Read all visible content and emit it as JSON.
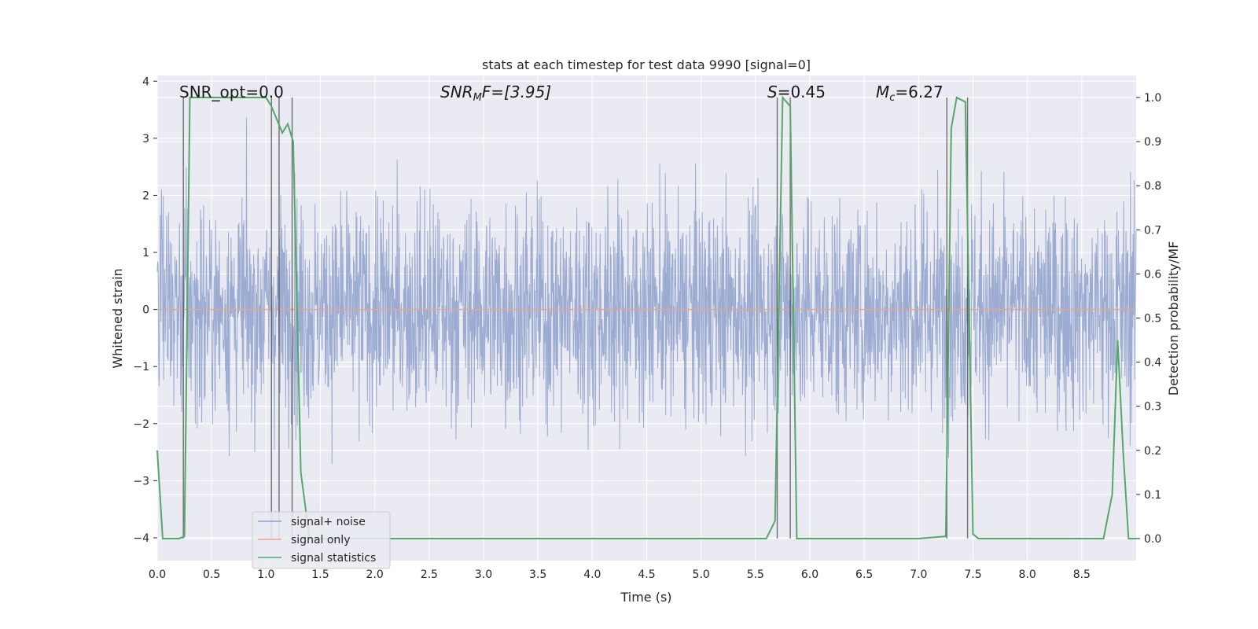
{
  "chart_data": {
    "type": "line",
    "title": "stats at each timestep for test data 9990 [signal=0]",
    "xlabel": "Time (s)",
    "ylabel_left": "Whitened strain",
    "ylabel_right": "Detection probability/MF",
    "xlim": [
      0.0,
      9.0
    ],
    "ylim_left": [
      -4.4,
      4.1
    ],
    "ylim_right": [
      -0.05,
      1.05
    ],
    "x_ticks": [
      "0.0",
      "0.5",
      "1.0",
      "1.5",
      "2.0",
      "2.5",
      "3.0",
      "3.5",
      "4.0",
      "4.5",
      "5.0",
      "5.5",
      "6.0",
      "6.5",
      "7.0",
      "7.5",
      "8.0",
      "8.5"
    ],
    "y_ticks_left": [
      "−4",
      "−3",
      "−2",
      "−1",
      "0",
      "1",
      "2",
      "3",
      "4"
    ],
    "y_ticks_right": [
      "0.0",
      "0.1",
      "0.2",
      "0.3",
      "0.4",
      "0.5",
      "0.6",
      "0.7",
      "0.8",
      "0.9",
      "1.0"
    ],
    "grid": true,
    "legend_position": "lower-left",
    "annotations": {
      "snr_opt": "SNR_opt=0.0",
      "snr_mf_main": "SNR",
      "snr_mf_sub": "M",
      "snr_mf_tail": "F=[3.95]",
      "s_main": "S",
      "s_tail": "=0.45",
      "mc_main": "M",
      "mc_sub": "c",
      "mc_tail": "=6.27"
    },
    "series": [
      {
        "name": "signal+ noise",
        "color": "#8da0cb",
        "axis": "left",
        "description": "whitened strain noise, approx amplitude range -3.5 to 3.6",
        "noise_std": 1.0,
        "noise_range": [
          -4.0,
          3.9
        ]
      },
      {
        "name": "signal only",
        "color": "#e5a78a",
        "axis": "left",
        "x": [
          0.0,
          9.0
        ],
        "y": [
          0.0,
          0.0
        ]
      },
      {
        "name": "signal statistics",
        "color": "#55a868",
        "axis": "right",
        "x": [
          0.0,
          0.05,
          0.2,
          0.25,
          0.3,
          0.5,
          1.0,
          1.05,
          1.15,
          1.2,
          1.25,
          1.32,
          1.4,
          5.6,
          5.68,
          5.75,
          5.82,
          5.88,
          7.0,
          7.25,
          7.3,
          7.35,
          7.43,
          7.5,
          7.55,
          8.7,
          8.78,
          8.83,
          8.88,
          8.93,
          9.0
        ],
        "y": [
          0.2,
          0.0,
          0.0,
          0.005,
          1.0,
          1.0,
          1.0,
          0.98,
          0.92,
          0.94,
          0.9,
          0.15,
          0.0,
          0.0,
          0.04,
          1.0,
          0.98,
          0.0,
          0.0,
          0.005,
          0.93,
          1.0,
          0.99,
          0.01,
          0.0,
          0.0,
          0.1,
          0.45,
          0.2,
          0.0,
          0.0
        ]
      }
    ],
    "vertical_markers_x": [
      0.24,
      1.05,
      1.12,
      1.24,
      5.7,
      5.82,
      7.26,
      7.45
    ]
  }
}
